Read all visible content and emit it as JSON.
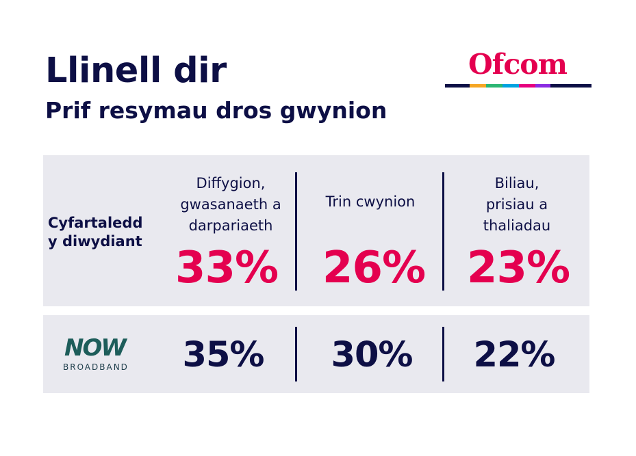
{
  "title": "Llinell dir",
  "subtitle": "Prif resymau dros gwynion",
  "logo": {
    "text": "Ofcom",
    "color": "#e4004f",
    "bar_color": "#0d0f45",
    "bar_segments": [
      "#f5a623",
      "#2bb673",
      "#00a3e0",
      "#e6007e",
      "#8a2be2"
    ]
  },
  "industry": {
    "label_line1": "Cyfartaledd",
    "label_line2": "y diwydiant"
  },
  "categories": [
    {
      "lines": [
        "Diffygion,",
        "gwasanaeth a",
        "darpariaeth"
      ],
      "industry_value": "33%",
      "provider_value": "35%"
    },
    {
      "lines": [
        "Trin cwynion"
      ],
      "industry_value": "26%",
      "provider_value": "30%"
    },
    {
      "lines": [
        "Biliau,",
        "prisiau a",
        "thaliadau"
      ],
      "industry_value": "23%",
      "provider_value": "22%"
    }
  ],
  "provider": {
    "logo_text": "NOW",
    "logo_sub": "BROADBAND"
  },
  "colors": {
    "navy": "#0d0f45",
    "pink": "#e4004f",
    "panel": "#e9e9ef"
  }
}
